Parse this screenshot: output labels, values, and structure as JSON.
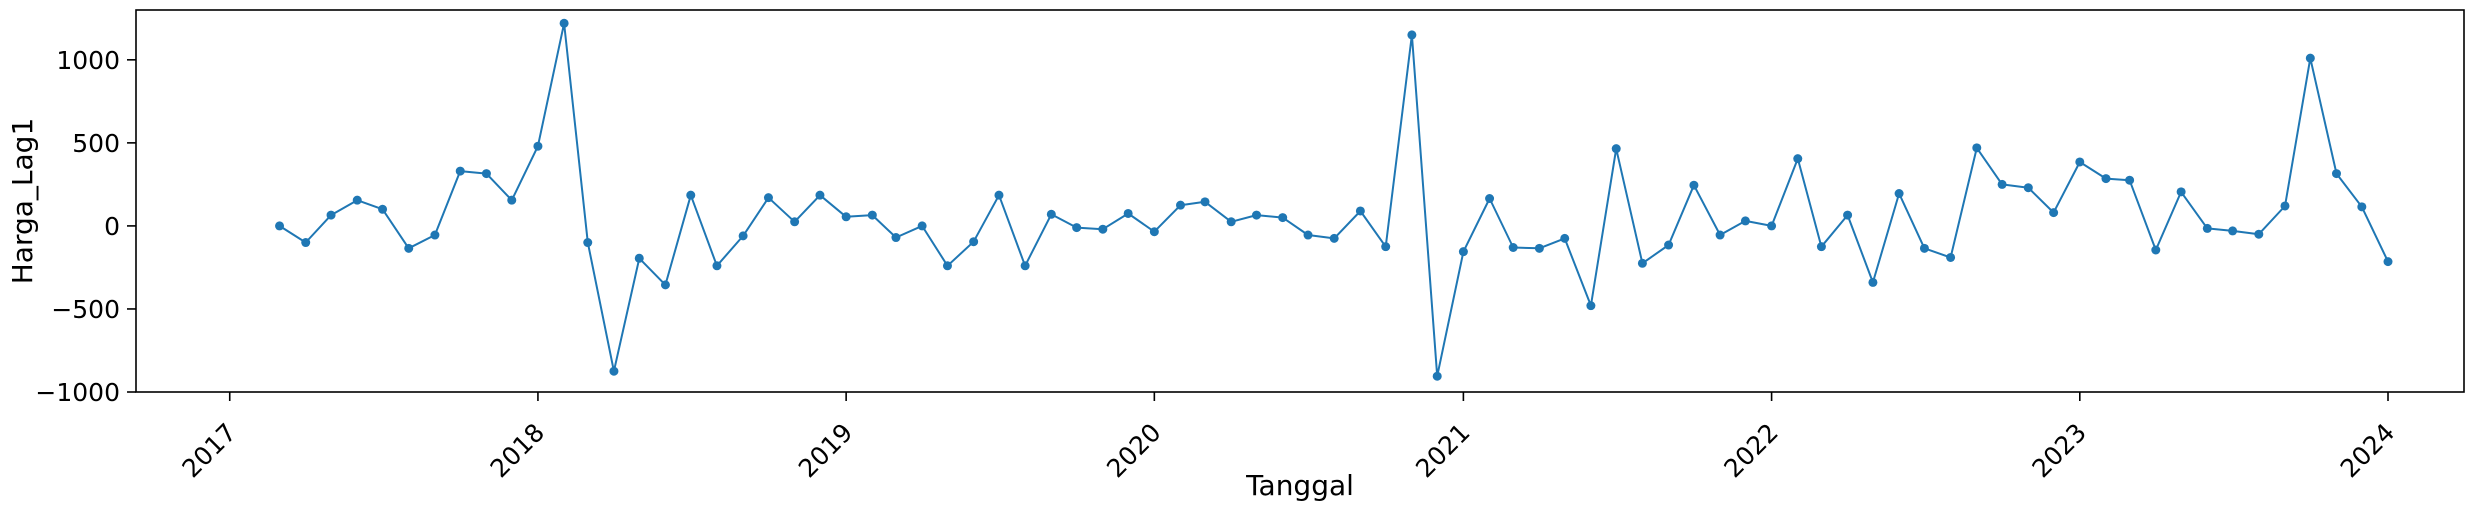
{
  "chart_data": {
    "type": "line",
    "xlabel": "Tanggal",
    "ylabel": "Harga_Lag1",
    "x_range": [
      "2016-09-12",
      "2024-03-31"
    ],
    "ylim": [
      -1000,
      1300
    ],
    "x_ticks": [
      "2017",
      "2018",
      "2019",
      "2020",
      "2021",
      "2022",
      "2023",
      "2024"
    ],
    "y_ticks": [
      -1000,
      -500,
      0,
      500,
      1000
    ],
    "y_tick_labels": [
      "−1000",
      "−500",
      "0",
      "500",
      "1000"
    ],
    "grid": false,
    "legend": "none",
    "colors": {
      "line": "#1f77b4",
      "marker": "#1f77b4",
      "axes": "#000000"
    },
    "series": [
      {
        "x": [
          "2017-03-01",
          "2017-04-01",
          "2017-05-01",
          "2017-06-01",
          "2017-07-01",
          "2017-08-01",
          "2017-09-01",
          "2017-10-01",
          "2017-11-01",
          "2017-12-01",
          "2018-01-01",
          "2018-02-01",
          "2018-03-01",
          "2018-04-01",
          "2018-05-01",
          "2018-06-01",
          "2018-07-01",
          "2018-08-01",
          "2018-09-01",
          "2018-10-01",
          "2018-11-01",
          "2018-12-01",
          "2019-01-01",
          "2019-02-01",
          "2019-03-01",
          "2019-04-01",
          "2019-05-01",
          "2019-06-01",
          "2019-07-01",
          "2019-08-01",
          "2019-09-01",
          "2019-10-01",
          "2019-11-01",
          "2019-12-01",
          "2020-01-01",
          "2020-02-01",
          "2020-03-01",
          "2020-04-01",
          "2020-05-01",
          "2020-06-01",
          "2020-07-01",
          "2020-08-01",
          "2020-09-01",
          "2020-10-01",
          "2020-11-01",
          "2020-12-01",
          "2021-01-01",
          "2021-02-01",
          "2021-03-01",
          "2021-04-01",
          "2021-05-01",
          "2021-06-01",
          "2021-07-01",
          "2021-08-01",
          "2021-09-01",
          "2021-10-01",
          "2021-11-01",
          "2021-12-01",
          "2022-01-01",
          "2022-02-01",
          "2022-03-01",
          "2022-04-01",
          "2022-05-01",
          "2022-06-01",
          "2022-07-01",
          "2022-08-01",
          "2022-09-01",
          "2022-10-01",
          "2022-11-01",
          "2022-12-01",
          "2023-01-01",
          "2023-02-01",
          "2023-03-01",
          "2023-04-01",
          "2023-05-01",
          "2023-06-01",
          "2023-07-01",
          "2023-08-01",
          "2023-09-01",
          "2023-10-01",
          "2023-11-01",
          "2023-12-01",
          "2024-01-01"
        ],
        "y": [
          0,
          -100,
          65,
          155,
          100,
          -135,
          -55,
          330,
          315,
          155,
          480,
          1220,
          -100,
          -875,
          -195,
          -355,
          185,
          -240,
          -60,
          170,
          25,
          185,
          55,
          65,
          -70,
          0,
          -240,
          -95,
          185,
          -240,
          70,
          -10,
          -20,
          75,
          -35,
          125,
          145,
          25,
          65,
          50,
          -55,
          -75,
          90,
          -125,
          1150,
          -905,
          -155,
          165,
          -130,
          -135,
          -75,
          -480,
          465,
          -225,
          -115,
          245,
          -55,
          30,
          0,
          405,
          -125,
          65,
          -340,
          195,
          -135,
          -190,
          470,
          250,
          230,
          80,
          385,
          285,
          275,
          -145,
          205,
          -15,
          -30,
          -50,
          120,
          1010,
          315,
          115,
          -215
        ]
      }
    ]
  }
}
